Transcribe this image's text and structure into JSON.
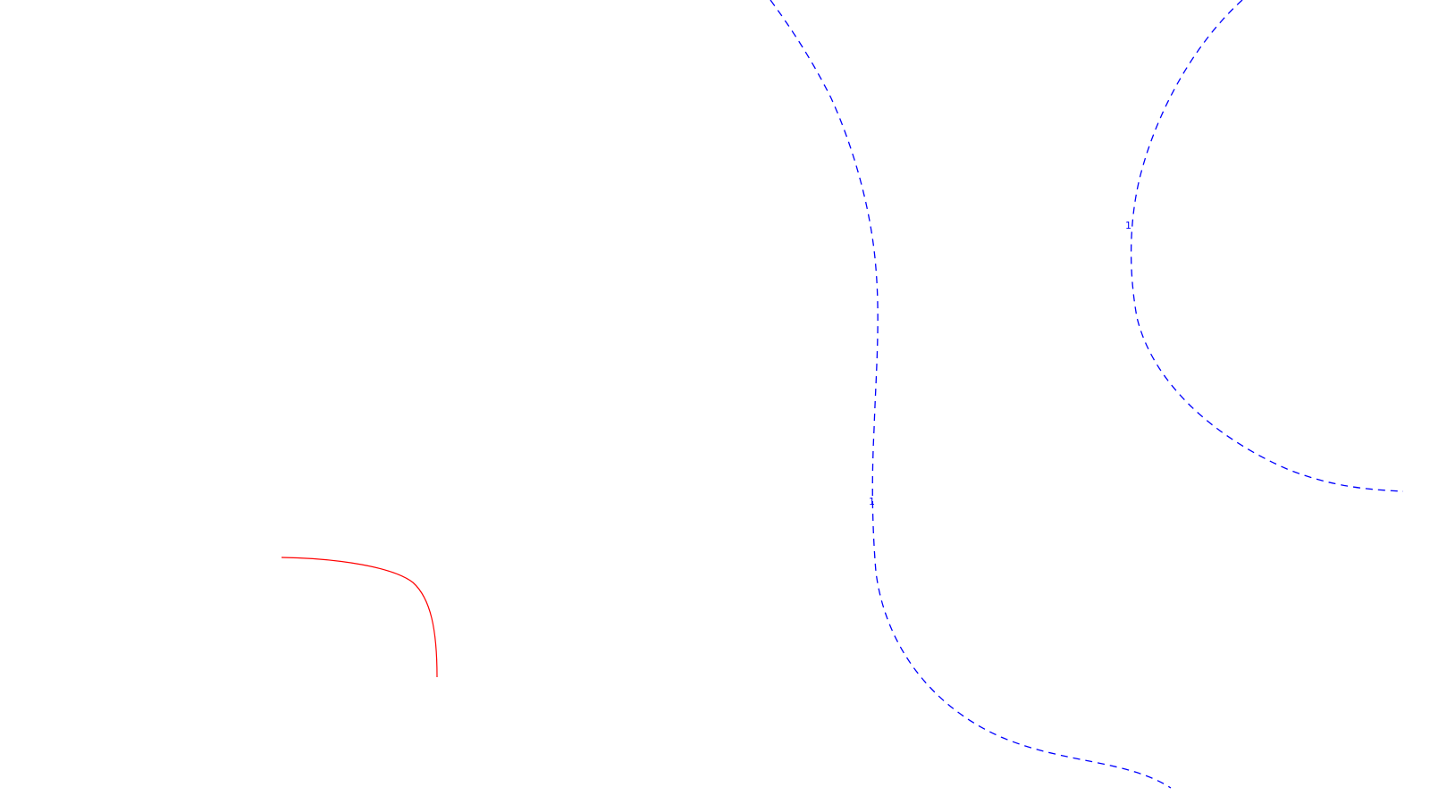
{
  "diagram": {
    "background": "#ffffff",
    "curves": [
      {
        "id": "contour-left",
        "style": "dashed",
        "color": "#0000ff",
        "label": "1"
      },
      {
        "id": "contour-right",
        "style": "dashed",
        "color": "#0000ff",
        "label": "1"
      },
      {
        "id": "arc-red",
        "style": "solid",
        "color": "#ff0000",
        "label": ""
      }
    ]
  }
}
